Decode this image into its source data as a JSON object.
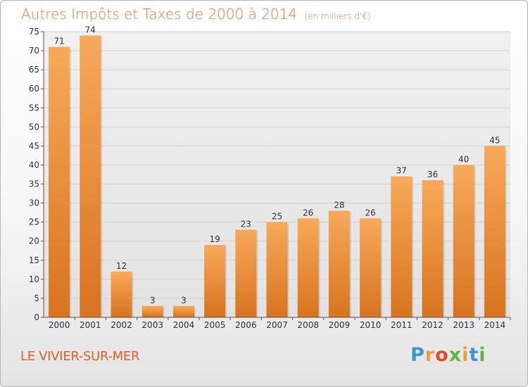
{
  "title": "Autres Impôts et Taxes de 2000 à 2014",
  "subtitle": "(en milliers d'€)",
  "commune": "LE VIVIER-SUR-MER",
  "logo": {
    "p": "P",
    "r": "r",
    "o": "o",
    "x": "x",
    "i1": "i",
    "t": "t",
    "i2": "i"
  },
  "colors": {
    "bar_light": "#f7a95a",
    "bar_dark": "#d8731e",
    "title": "#e3793e",
    "commune": "#e3602c"
  },
  "chart_data": {
    "type": "bar",
    "categories": [
      "2000",
      "2001",
      "2002",
      "2003",
      "2004",
      "2005",
      "2006",
      "2007",
      "2008",
      "2009",
      "2010",
      "2011",
      "2012",
      "2013",
      "2014"
    ],
    "values": [
      71,
      74,
      12,
      3,
      3,
      19,
      23,
      25,
      26,
      28,
      26,
      37,
      36,
      40,
      45
    ],
    "ylim": [
      0,
      75
    ],
    "yticks": [
      0,
      5,
      10,
      15,
      20,
      25,
      30,
      35,
      40,
      45,
      50,
      55,
      60,
      65,
      70,
      75
    ],
    "grid": true
  }
}
